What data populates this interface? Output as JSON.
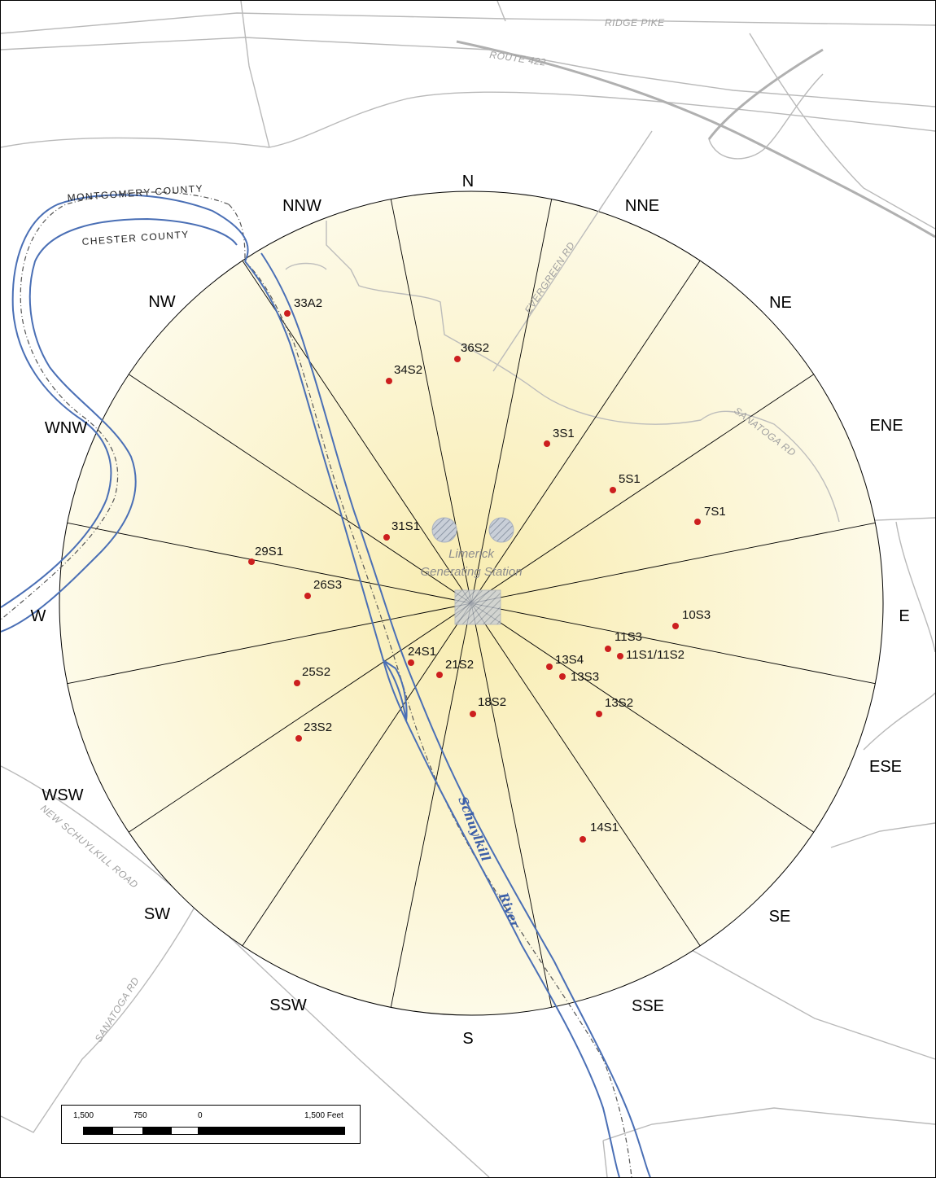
{
  "map": {
    "station_name": "Limerick",
    "station_subname": "Generating Station",
    "directions": [
      "N",
      "NNE",
      "NE",
      "ENE",
      "E",
      "ESE",
      "SE",
      "SSE",
      "S",
      "SSW",
      "SW",
      "WSW",
      "W",
      "WNW",
      "NW",
      "NNW"
    ],
    "sampling_sites": [
      "33A2",
      "36S2",
      "34S2",
      "3S1",
      "5S1",
      "7S1",
      "31S1",
      "29S1",
      "26S3",
      "10S3",
      "11S3",
      "11S1/11S2",
      "13S4",
      "13S3",
      "24S1",
      "21S2",
      "25S2",
      "18S2",
      "13S2",
      "23S2",
      "14S1"
    ],
    "roads": {
      "ridge_pike": "RIDGE PIKE",
      "route_422": "ROUTE 422",
      "evergreen_rd": "EVERGREEN RD",
      "sanatoga_rd": "SANATOGA RD",
      "new_schuylkill_road": "NEW SCHUYLKILL ROAD",
      "sanatoga_rd_2": "SANATOGA RD"
    },
    "counties": {
      "north": "MONTGOMERY COUNTY",
      "south": "CHESTER COUNTY"
    },
    "river_name": "Schuylkill",
    "river_word": "River",
    "colors": {
      "river": "#4a6fb5",
      "site_marker": "#cc1f1f",
      "circle_fill": "#fbf6d6",
      "roads": "#b9b9b9"
    }
  },
  "scale_bar": {
    "ticks": [
      "1,500",
      "750",
      "0",
      "1,500 Feet"
    ]
  }
}
